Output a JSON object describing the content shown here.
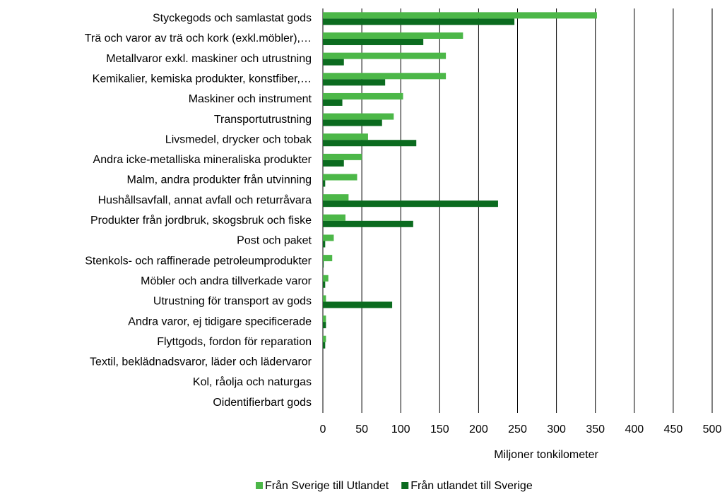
{
  "chart_data": {
    "type": "bar",
    "orientation": "horizontal",
    "categories": [
      "Styckegods och samlastat gods",
      "Trä och varor av trä och kork (exkl.möbler),…",
      "Metallvaror exkl. maskiner och utrustning",
      "Kemikalier, kemiska produkter, konstfiber,…",
      "Maskiner och instrument",
      "Transportutrustning",
      "Livsmedel, drycker och tobak",
      "Andra icke-metalliska mineraliska produkter",
      "Malm, andra produkter från utvinning",
      "Hushållsavfall, annat avfall och returråvara",
      "Produkter från jordbruk, skogsbruk och fiske",
      "Post och paket",
      "Stenkols- och raffinerade petroleumprodukter",
      "Möbler och andra tillverkade varor",
      "Utrustning för transport av gods",
      "Andra varor, ej tidigare specificerade",
      "Flyttgods, fordon för reparation",
      "Textil, beklädnadsvaror, läder och lädervaror",
      "Kol, råolja och naturgas",
      "Oidentifierbart gods"
    ],
    "series": [
      {
        "name": "Från Sverige till Utlandet",
        "color": "#4cb748",
        "values": [
          352,
          180,
          158,
          158,
          103,
          91,
          58,
          50,
          44,
          33,
          29,
          14,
          12,
          7,
          4,
          4,
          4,
          0,
          0,
          0
        ]
      },
      {
        "name": "Från utlandet till Sverige",
        "color": "#0b6b1f",
        "values": [
          246,
          129,
          27,
          80,
          25,
          76,
          120,
          27,
          3,
          225,
          116,
          3,
          1,
          3,
          89,
          4,
          3,
          0,
          0,
          0
        ]
      }
    ],
    "x_label": "Miljoner tonkilometer",
    "xlim": [
      0,
      500
    ],
    "xticks": [
      0,
      50,
      100,
      150,
      200,
      250,
      300,
      350,
      400,
      450,
      500
    ],
    "grid": true,
    "legend": "bottom"
  }
}
